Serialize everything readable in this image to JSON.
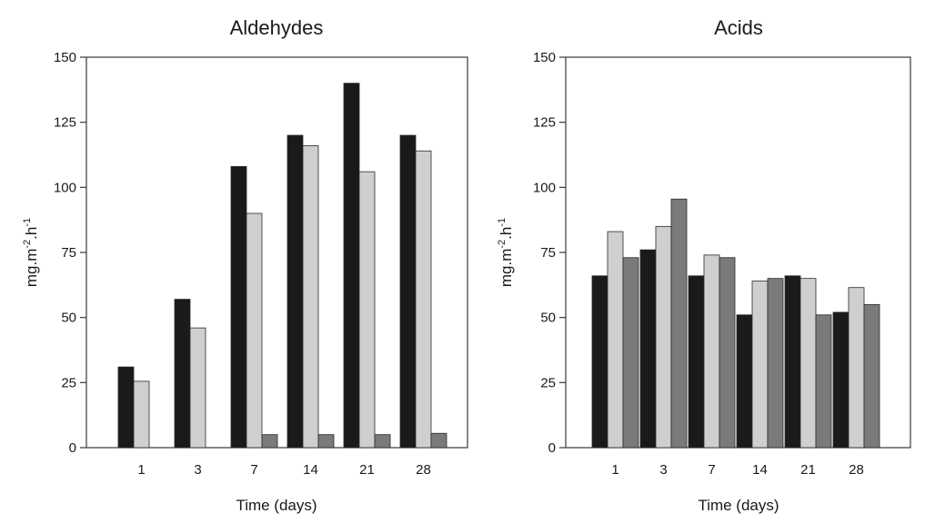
{
  "chart_data": [
    {
      "type": "bar",
      "title": "Aldehydes",
      "xlabel": "Time (days)",
      "ylabel_base": "mg.m",
      "ylabel_sup1": "-2",
      "ylabel_mid": ".h",
      "ylabel_sup2": "-1",
      "categories": [
        "1",
        "3",
        "7",
        "14",
        "21",
        "28"
      ],
      "ylim": [
        0,
        150
      ],
      "yticks": [
        "0",
        "25",
        "50",
        "75",
        "100",
        "125",
        "150"
      ],
      "series": [
        {
          "color": "#1a1a1a",
          "values": [
            31,
            57,
            108,
            120,
            140,
            120
          ]
        },
        {
          "color": "#cfcfcf",
          "values": [
            25.5,
            46,
            90,
            116,
            106,
            114
          ]
        },
        {
          "color": "#7a7a7a",
          "values": [
            0,
            0,
            5,
            5,
            5,
            5.5
          ]
        }
      ],
      "grid": false
    },
    {
      "type": "bar",
      "title": "Acids",
      "xlabel": "Time (days)",
      "ylabel_base": "mg.m",
      "ylabel_sup1": "-2",
      "ylabel_mid": ".h",
      "ylabel_sup2": "-1",
      "categories": [
        "1",
        "3",
        "7",
        "14",
        "21",
        "28"
      ],
      "ylim": [
        0,
        150
      ],
      "yticks": [
        "0",
        "25",
        "50",
        "75",
        "100",
        "125",
        "150"
      ],
      "series": [
        {
          "color": "#1a1a1a",
          "values": [
            66,
            76,
            66,
            51,
            66,
            52
          ]
        },
        {
          "color": "#cfcfcf",
          "values": [
            83,
            85,
            74,
            64,
            65,
            61.5
          ]
        },
        {
          "color": "#7a7a7a",
          "values": [
            73,
            95.5,
            73,
            65,
            51,
            55
          ]
        }
      ],
      "grid": false
    }
  ]
}
